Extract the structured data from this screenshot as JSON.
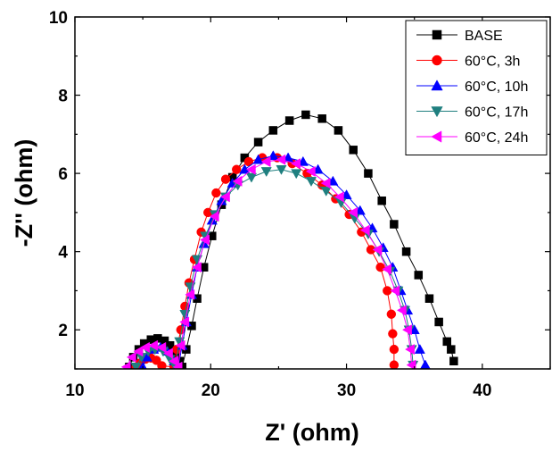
{
  "chart_data": {
    "type": "scatter",
    "xlabel": "Z' (ohm)",
    "ylabel": "-Z'' (ohm)",
    "xlim": [
      10,
      45
    ],
    "ylim": [
      1,
      10
    ],
    "xticks": [
      10,
      20,
      30,
      40
    ],
    "yticks": [
      2,
      4,
      6,
      8,
      10
    ],
    "legend_position": "top-right",
    "series": [
      {
        "name": "BASE",
        "color": "#000000",
        "marker": "square",
        "points": [
          [
            14.0,
            1.05
          ],
          [
            14.3,
            1.3
          ],
          [
            14.7,
            1.5
          ],
          [
            15.1,
            1.65
          ],
          [
            15.6,
            1.75
          ],
          [
            16.1,
            1.78
          ],
          [
            16.6,
            1.72
          ],
          [
            17.0,
            1.6
          ],
          [
            17.4,
            1.4
          ],
          [
            17.7,
            1.2
          ],
          [
            17.9,
            1.05
          ],
          [
            18.2,
            1.5
          ],
          [
            18.6,
            2.1
          ],
          [
            19.0,
            2.8
          ],
          [
            19.5,
            3.6
          ],
          [
            20.1,
            4.4
          ],
          [
            20.8,
            5.2
          ],
          [
            21.6,
            5.9
          ],
          [
            22.5,
            6.4
          ],
          [
            23.5,
            6.8
          ],
          [
            24.6,
            7.1
          ],
          [
            25.8,
            7.35
          ],
          [
            27.0,
            7.5
          ],
          [
            28.2,
            7.4
          ],
          [
            29.4,
            7.1
          ],
          [
            30.5,
            6.6
          ],
          [
            31.6,
            6.0
          ],
          [
            32.6,
            5.3
          ],
          [
            33.5,
            4.7
          ],
          [
            34.4,
            4.0
          ],
          [
            35.3,
            3.4
          ],
          [
            36.1,
            2.8
          ],
          [
            36.8,
            2.2
          ],
          [
            37.4,
            1.7
          ],
          [
            37.7,
            1.5
          ],
          [
            37.9,
            1.2
          ]
        ]
      },
      {
        "name": "60°C, 3h",
        "color": "#ff0000",
        "marker": "circle",
        "points": [
          [
            14.5,
            1.05
          ],
          [
            14.8,
            1.15
          ],
          [
            15.2,
            1.25
          ],
          [
            15.6,
            1.28
          ],
          [
            16.0,
            1.22
          ],
          [
            16.4,
            1.08
          ],
          [
            17.3,
            1.05
          ],
          [
            17.5,
            1.5
          ],
          [
            17.8,
            2.0
          ],
          [
            18.1,
            2.6
          ],
          [
            18.4,
            3.2
          ],
          [
            18.8,
            3.8
          ],
          [
            19.3,
            4.5
          ],
          [
            19.8,
            5.0
          ],
          [
            20.4,
            5.5
          ],
          [
            21.1,
            5.85
          ],
          [
            21.9,
            6.1
          ],
          [
            22.8,
            6.3
          ],
          [
            23.8,
            6.4
          ],
          [
            24.9,
            6.4
          ],
          [
            26.0,
            6.25
          ],
          [
            27.1,
            6.0
          ],
          [
            28.2,
            5.7
          ],
          [
            29.2,
            5.35
          ],
          [
            30.2,
            4.95
          ],
          [
            31.1,
            4.5
          ],
          [
            31.8,
            4.05
          ],
          [
            32.5,
            3.6
          ],
          [
            33.0,
            3.0
          ],
          [
            33.3,
            2.4
          ],
          [
            33.4,
            1.9
          ],
          [
            33.5,
            1.5
          ],
          [
            33.5,
            1.1
          ]
        ]
      },
      {
        "name": "60°C, 10h",
        "color": "#0000ff",
        "marker": "triangle-up",
        "points": [
          [
            15.0,
            1.05
          ],
          [
            15.3,
            1.3
          ],
          [
            15.8,
            1.5
          ],
          [
            16.3,
            1.55
          ],
          [
            16.8,
            1.45
          ],
          [
            17.3,
            1.2
          ],
          [
            17.6,
            1.05
          ],
          [
            17.9,
            1.6
          ],
          [
            18.2,
            2.2
          ],
          [
            18.6,
            2.9
          ],
          [
            19.0,
            3.6
          ],
          [
            19.5,
            4.2
          ],
          [
            20.1,
            4.8
          ],
          [
            20.8,
            5.3
          ],
          [
            21.6,
            5.75
          ],
          [
            22.5,
            6.1
          ],
          [
            23.5,
            6.35
          ],
          [
            24.6,
            6.45
          ],
          [
            25.7,
            6.4
          ],
          [
            26.8,
            6.3
          ],
          [
            27.9,
            6.1
          ],
          [
            29.0,
            5.8
          ],
          [
            30.0,
            5.45
          ],
          [
            31.0,
            5.05
          ],
          [
            31.9,
            4.6
          ],
          [
            32.7,
            4.1
          ],
          [
            33.4,
            3.6
          ],
          [
            34.0,
            3.0
          ],
          [
            34.5,
            2.5
          ],
          [
            35.0,
            2.0
          ],
          [
            35.4,
            1.5
          ],
          [
            35.8,
            1.1
          ]
        ]
      },
      {
        "name": "60°C, 17h",
        "color": "#1f7f7f",
        "marker": "triangle-down",
        "points": [
          [
            14.5,
            1.05
          ],
          [
            14.9,
            1.3
          ],
          [
            15.4,
            1.45
          ],
          [
            15.9,
            1.5
          ],
          [
            16.5,
            1.45
          ],
          [
            17.0,
            1.25
          ],
          [
            17.4,
            1.05
          ],
          [
            17.7,
            1.7
          ],
          [
            18.1,
            2.4
          ],
          [
            18.5,
            3.1
          ],
          [
            19.0,
            3.8
          ],
          [
            19.6,
            4.4
          ],
          [
            20.3,
            4.95
          ],
          [
            21.1,
            5.4
          ],
          [
            22.0,
            5.7
          ],
          [
            23.0,
            5.9
          ],
          [
            24.1,
            6.05
          ],
          [
            25.2,
            6.1
          ],
          [
            26.3,
            6.0
          ],
          [
            27.4,
            5.8
          ],
          [
            28.5,
            5.55
          ],
          [
            29.6,
            5.25
          ],
          [
            30.6,
            4.85
          ],
          [
            31.6,
            4.45
          ],
          [
            32.4,
            4.0
          ],
          [
            33.2,
            3.5
          ],
          [
            33.8,
            3.0
          ],
          [
            34.3,
            2.5
          ],
          [
            34.6,
            2.0
          ],
          [
            34.8,
            1.5
          ],
          [
            34.9,
            1.1
          ]
        ]
      },
      {
        "name": "60°C, 24h",
        "color": "#ff00ff",
        "marker": "triangle-left",
        "points": [
          [
            13.8,
            1.05
          ],
          [
            14.2,
            1.3
          ],
          [
            14.7,
            1.45
          ],
          [
            15.2,
            1.55
          ],
          [
            15.8,
            1.6
          ],
          [
            16.4,
            1.55
          ],
          [
            16.9,
            1.4
          ],
          [
            17.3,
            1.2
          ],
          [
            17.6,
            1.05
          ],
          [
            17.8,
            1.6
          ],
          [
            18.1,
            2.2
          ],
          [
            18.5,
            2.9
          ],
          [
            19.0,
            3.6
          ],
          [
            19.6,
            4.3
          ],
          [
            20.3,
            4.9
          ],
          [
            21.1,
            5.4
          ],
          [
            22.0,
            5.8
          ],
          [
            23.0,
            6.1
          ],
          [
            24.1,
            6.3
          ],
          [
            25.2,
            6.35
          ],
          [
            26.3,
            6.25
          ],
          [
            27.4,
            6.05
          ],
          [
            28.5,
            5.75
          ],
          [
            29.5,
            5.4
          ],
          [
            30.5,
            5.0
          ],
          [
            31.4,
            4.55
          ],
          [
            32.3,
            4.05
          ],
          [
            33.0,
            3.55
          ],
          [
            33.6,
            3.0
          ],
          [
            34.1,
            2.5
          ],
          [
            34.5,
            2.0
          ],
          [
            34.7,
            1.5
          ],
          [
            34.8,
            1.1
          ]
        ]
      }
    ]
  }
}
